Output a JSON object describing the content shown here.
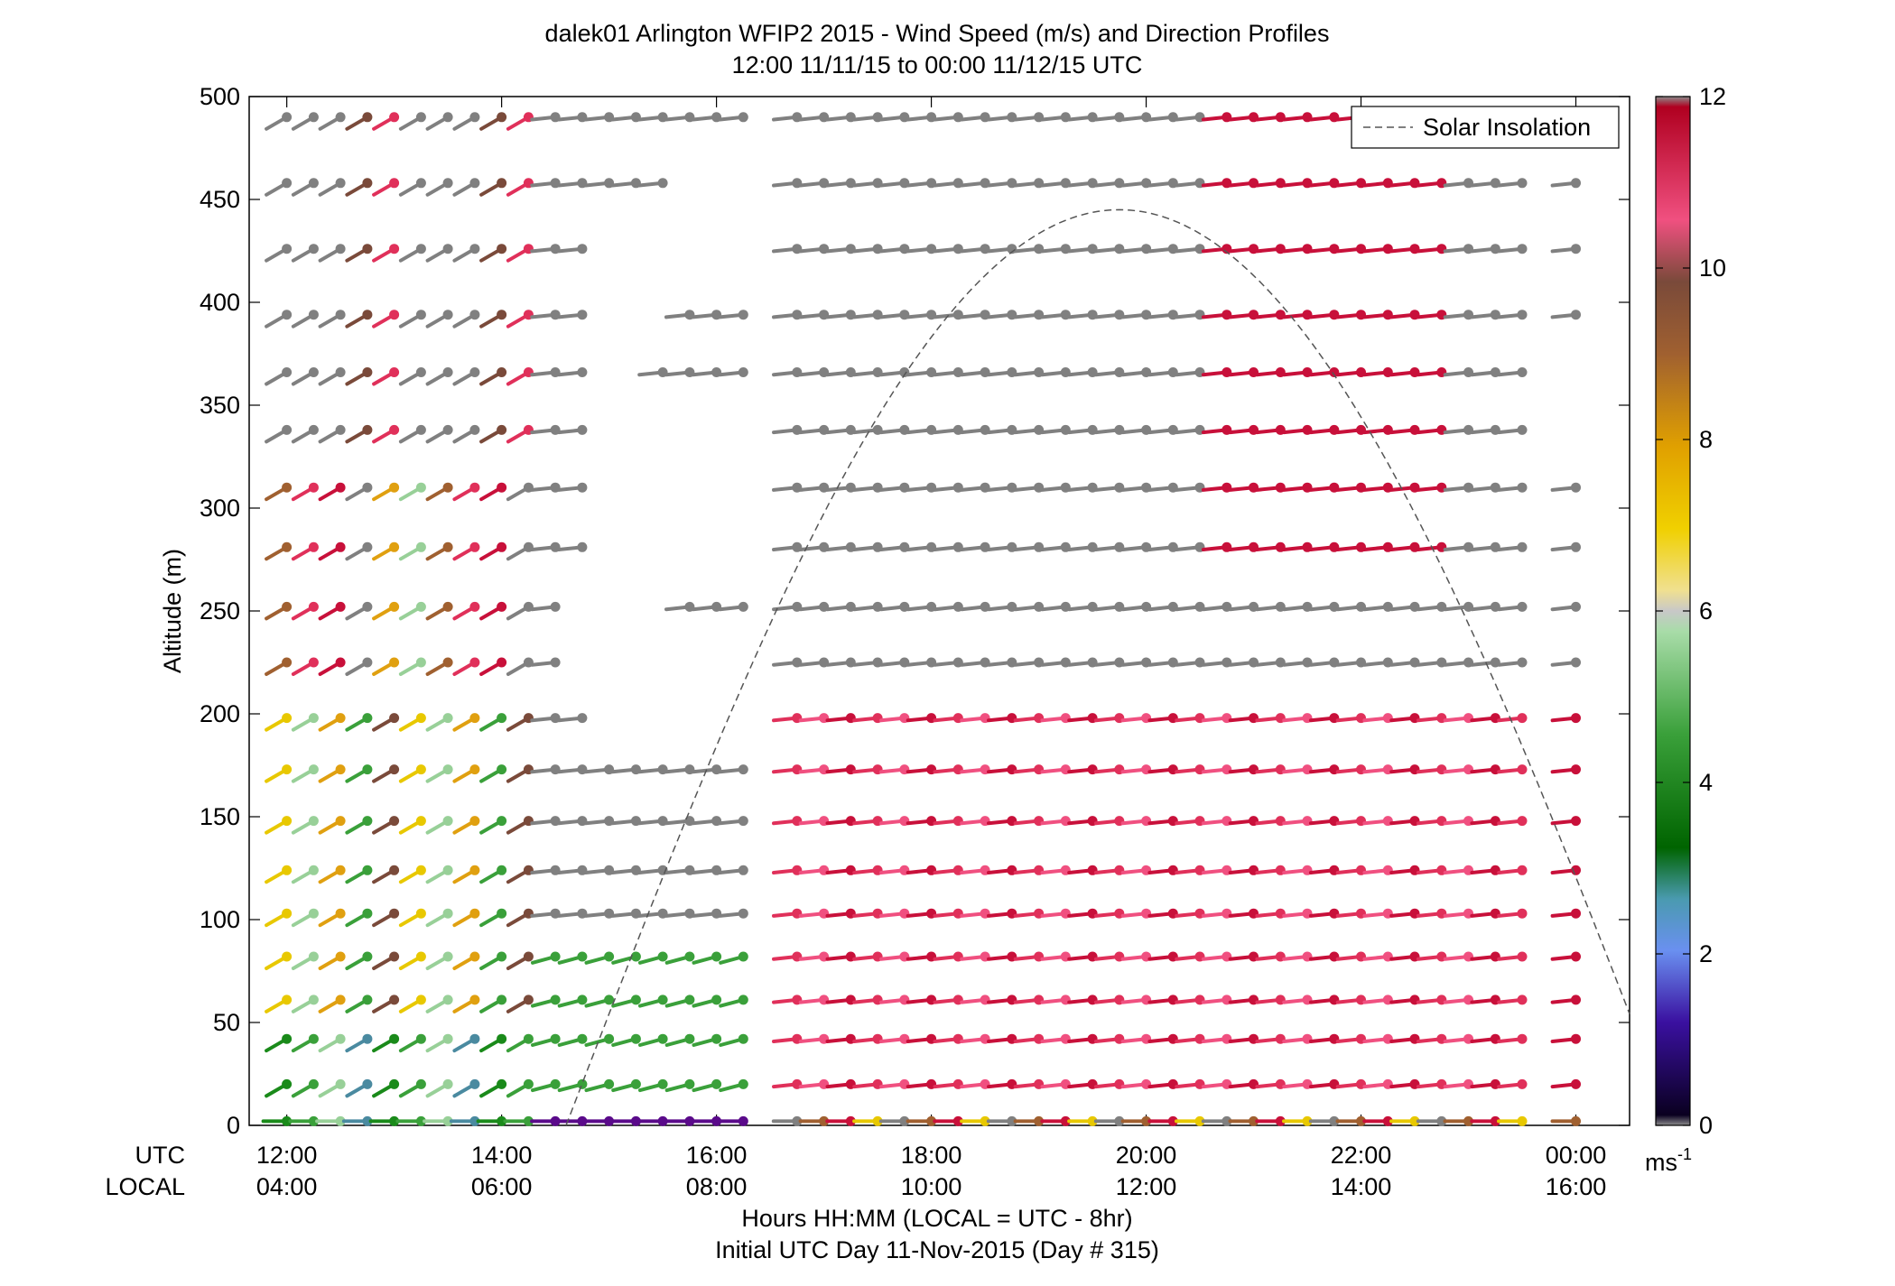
{
  "chart_data": {
    "type": "scatter",
    "title": "dalek01 Arlington WFIP2 2015 - Wind Speed (m/s) and Direction Profiles",
    "subtitle": "12:00 11/11/15 to 00:00 11/12/15  UTC",
    "ylabel": "Altitude (m)",
    "xlabel_line1": "Hours HH:MM  (LOCAL = UTC - 8hr)",
    "xlabel_line2": "Initial UTC Day 11-Nov-2015 (Day # 315)",
    "row_label_utc": "UTC",
    "row_label_local": "LOCAL",
    "xlim_hours": [
      11.65,
      24.5
    ],
    "ylim": [
      0,
      500
    ],
    "x_ticks_utc": [
      "12:00",
      "14:00",
      "16:00",
      "18:00",
      "20:00",
      "22:00",
      "00:00"
    ],
    "x_ticks_local": [
      "04:00",
      "06:00",
      "08:00",
      "10:00",
      "12:00",
      "14:00",
      "16:00"
    ],
    "x_tick_hours": [
      12,
      14,
      16,
      18,
      20,
      22,
      24
    ],
    "y_ticks": [
      0,
      50,
      100,
      150,
      200,
      250,
      300,
      350,
      400,
      450,
      500
    ],
    "legend": {
      "label": "Solar Insolation",
      "placement": "top-right"
    },
    "colorbar": {
      "min": 0,
      "max": 12,
      "ticks": [
        "0",
        "2",
        "4",
        "6",
        "8",
        "10",
        "12"
      ],
      "unit": "ms"
    },
    "solar_insolation": {
      "start_hour": 14.6,
      "peak_hour": 19.75,
      "peak_altitude": 445,
      "end_hour": 24.5,
      "end_altitude": 50
    },
    "levels": [
      2,
      20,
      42,
      61,
      82,
      103,
      124,
      148,
      173,
      198,
      225,
      252,
      281,
      310,
      338,
      366,
      394,
      426,
      458,
      490
    ],
    "time_step_hours": 0.25,
    "data_rows": [
      "",
      "",
      "",
      "",
      "",
      "",
      "",
      "",
      "",
      "",
      "",
      "",
      "",
      "",
      "",
      "",
      "",
      "",
      "",
      ""
    ],
    "encoding": "rows[level] = string over times 12:00..24:00 step 0.25h; char=speed code"
  },
  "colors": {
    "colorbar_stops": [
      "#7a7a7a",
      "#1a0a4a",
      "#3a1aa0",
      "#6a8ae0",
      "#3a8aa0",
      "#0a7a0a",
      "#3aa03a",
      "#a0d8a0",
      "#d8d8d8",
      "#f0d000",
      "#e0a000",
      "#a06030",
      "#7a4a3a",
      "#c04060",
      "#f05080",
      "#c01030",
      "#a01020",
      "#7a7a7a"
    ]
  }
}
